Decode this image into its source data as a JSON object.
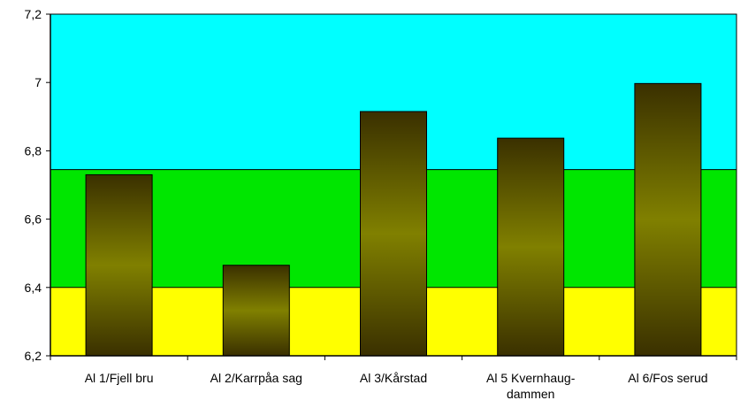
{
  "chart_data": {
    "type": "bar",
    "categories": [
      [
        "Al 1/Fjell bru"
      ],
      [
        "Al 2/Karrpåa sag"
      ],
      [
        "Al 3/Kårstad"
      ],
      [
        "Al 5 Kvernhaug-",
        "dammen"
      ],
      [
        "Al 6/Fos serud"
      ]
    ],
    "values": [
      6.73,
      6.465,
      6.915,
      6.837,
      6.997
    ],
    "ylim": [
      6.2,
      7.2
    ],
    "yticks": [
      "6,2",
      "6,4",
      "6,6",
      "6,8",
      "7",
      "7,2"
    ],
    "ytick_values": [
      6.2,
      6.4,
      6.6,
      6.8,
      7.0,
      7.2
    ],
    "bands": [
      {
        "from": 6.2,
        "to": 6.4,
        "color": "#ffff00"
      },
      {
        "from": 6.4,
        "to": 6.745,
        "color": "#00e600"
      },
      {
        "from": 6.745,
        "to": 7.2,
        "color": "#00ffff"
      }
    ],
    "bar_colors": {
      "edge": "#3a3000",
      "center": "#808000",
      "outline": "#000000"
    },
    "grid": false,
    "legend": "none"
  }
}
